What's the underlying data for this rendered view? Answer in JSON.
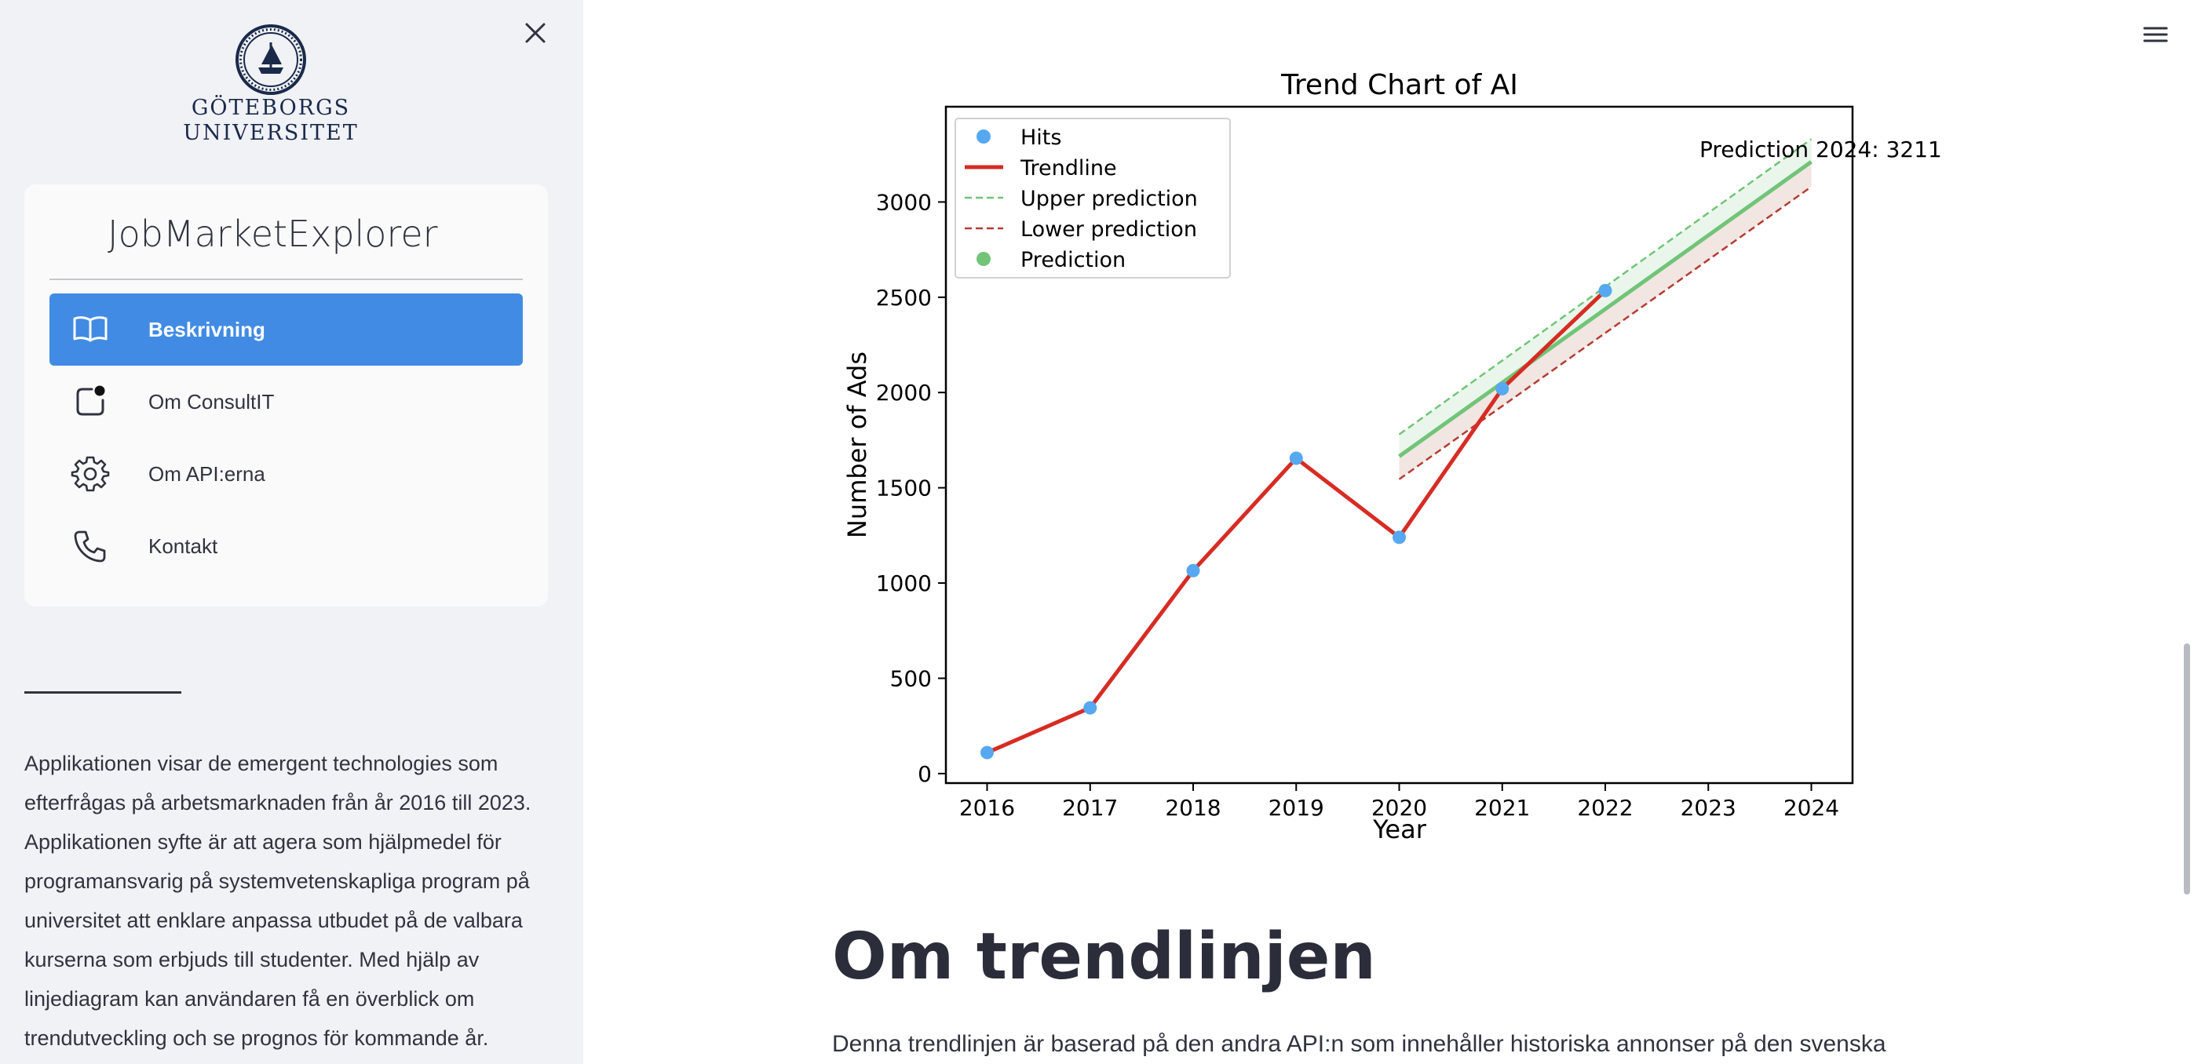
{
  "sidebar": {
    "logo": {
      "line1": "GÖTEBORGS",
      "line2": "UNIVERSITET"
    },
    "app_title": "JobMarketExplorer",
    "items": [
      {
        "label": "Beskrivning",
        "icon": "book-icon",
        "active": true
      },
      {
        "label": "Om ConsultIT",
        "icon": "notification-icon",
        "active": false
      },
      {
        "label": "Om API:erna",
        "icon": "gear-icon",
        "active": false
      },
      {
        "label": "Kontakt",
        "icon": "phone-icon",
        "active": false
      }
    ],
    "description": "Applikationen visar de emergent technologies som efterfrågas på arbetsmarknaden från år 2016 till 2023. Applikationen syfte är att agera som hjälpmedel för programansvarig på systemvetenskapliga program på universitet att enklare anpassa utbudet på de valbara kurserna som erbjuds till studenter. Med hjälp av linjediagram kan användaren få en överblick om trendutveckling och se prognos för kommande år."
  },
  "chart_data": {
    "type": "line",
    "title": "Trend Chart of AI",
    "xlabel": "Year",
    "ylabel": "Number of Ads",
    "xlim": [
      2015.6,
      2024.4
    ],
    "ylim": [
      -50,
      3500
    ],
    "x_ticks": [
      2016,
      2017,
      2018,
      2019,
      2020,
      2021,
      2022,
      2023,
      2024
    ],
    "y_ticks": [
      0,
      500,
      1000,
      1500,
      2000,
      2500,
      3000
    ],
    "series": [
      {
        "name": "Hits",
        "kind": "scatter",
        "color": "#56a8f0",
        "x": [
          2016,
          2017,
          2018,
          2019,
          2020,
          2021,
          2022
        ],
        "y": [
          110,
          345,
          1065,
          1655,
          1240,
          2020,
          2535
        ]
      },
      {
        "name": "Trendline",
        "kind": "line",
        "color": "#d62c24",
        "x": [
          2016,
          2017,
          2018,
          2019,
          2020,
          2021,
          2022
        ],
        "y": [
          110,
          345,
          1065,
          1655,
          1240,
          2020,
          2535
        ]
      },
      {
        "name": "Upper prediction",
        "kind": "dashed",
        "color": "#71c478",
        "x": [
          2020,
          2024
        ],
        "y": [
          1780,
          3330
        ]
      },
      {
        "name": "Lower prediction",
        "kind": "dashed",
        "color": "#b43c34",
        "x": [
          2020,
          2024
        ],
        "y": [
          1545,
          3080
        ]
      },
      {
        "name": "Prediction",
        "kind": "line",
        "color": "#71c478",
        "x": [
          2020,
          2024
        ],
        "y": [
          1665,
          3211
        ]
      }
    ],
    "annotation": {
      "text": "Prediction 2024: 3211",
      "x": 2024,
      "y": 3211
    },
    "legend": "upper-left",
    "grid": false
  },
  "main": {
    "heading": "Om trendlinjen",
    "text": "Denna trendlinjen är baserad på den andra API:n som innehåller historiska annonser på den svenska"
  }
}
